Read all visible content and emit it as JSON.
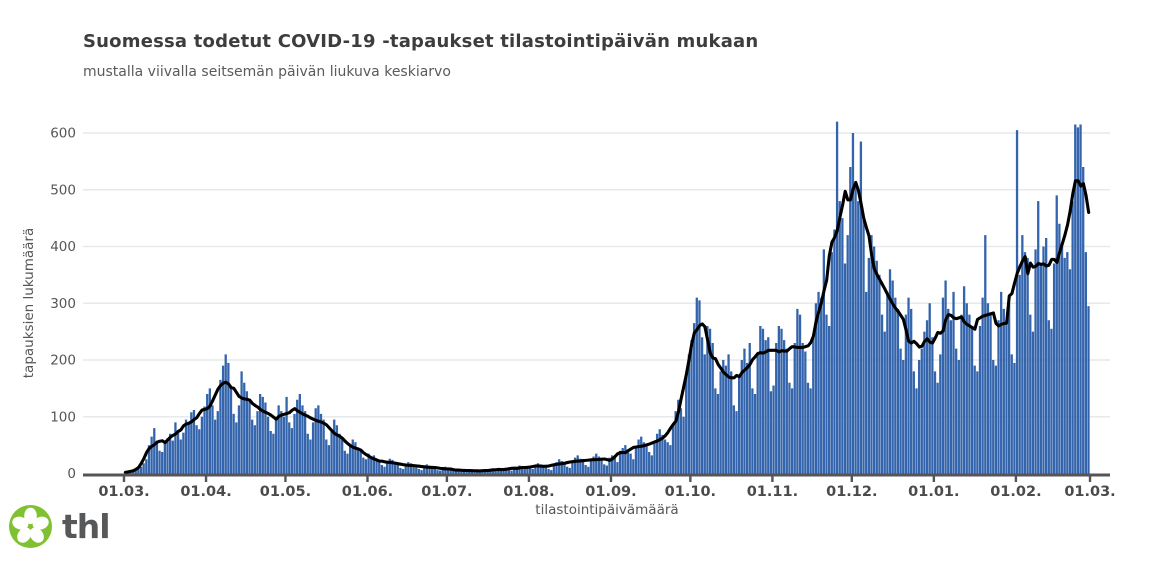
{
  "header": {
    "title": "Suomessa todetut COVID-19 -tapaukset tilastointipäivän mukaan",
    "subtitle": "mustalla viivalla seitsemän päivän liukuva keskiarvo"
  },
  "footer": {
    "logo_text": "thl",
    "logo_green": "#7fc131",
    "logo_text_color": "#57585a"
  },
  "chart_data": {
    "type": "bar",
    "title": "Suomessa todetut COVID-19 -tapaukset tilastointipäivän mukaan",
    "subtitle": "mustalla viivalla seitsemän päivän liukuva keskiarvo",
    "xlabel": "tilastointipäivämäärä",
    "ylabel": "tapauksien lukumäärä",
    "ylim": [
      0,
      600
    ],
    "y_ticks": [
      0,
      100,
      200,
      300,
      400,
      500,
      600
    ],
    "x_tick_labels": [
      "01.03.",
      "01.04.",
      "01.05.",
      "01.06.",
      "01.07.",
      "01.08.",
      "01.09.",
      "01.10.",
      "01.11.",
      "01.12.",
      "01.01.",
      "01.02.",
      "01.03."
    ],
    "x_tick_day_offsets": [
      0,
      31,
      61,
      92,
      122,
      153,
      184,
      214,
      245,
      275,
      306,
      337,
      365
    ],
    "start_date_label": "01.03.",
    "grid": "horizontal",
    "legend": "none",
    "bar_color": "#3465ac",
    "line_color": "#000000",
    "axis_color": "#555558",
    "grid_color": "#e7e9ea",
    "moving_average_window": 7,
    "series": [
      {
        "name": "tapauksien lukumäärä",
        "values": [
          1,
          2,
          1,
          4,
          6,
          8,
          12,
          18,
          25,
          50,
          65,
          80,
          58,
          40,
          38,
          55,
          62,
          70,
          58,
          90,
          75,
          60,
          72,
          95,
          88,
          108,
          112,
          85,
          78,
          100,
          118,
          140,
          150,
          120,
          95,
          110,
          165,
          190,
          210,
          195,
          150,
          105,
          90,
          120,
          180,
          160,
          145,
          130,
          95,
          85,
          110,
          140,
          135,
          125,
          100,
          75,
          70,
          95,
          120,
          110,
          100,
          135,
          90,
          80,
          105,
          130,
          140,
          120,
          110,
          70,
          60,
          90,
          115,
          120,
          105,
          95,
          60,
          50,
          75,
          95,
          85,
          70,
          60,
          40,
          35,
          50,
          60,
          55,
          45,
          40,
          28,
          25,
          35,
          28,
          32,
          25,
          20,
          15,
          12,
          22,
          26,
          24,
          20,
          18,
          10,
          8,
          15,
          20,
          18,
          16,
          14,
          8,
          6,
          12,
          16,
          14,
          12,
          10,
          6,
          5,
          10,
          12,
          8,
          10,
          6,
          5,
          4,
          3,
          6,
          8,
          7,
          5,
          4,
          3,
          2,
          5,
          7,
          6,
          8,
          5,
          4,
          6,
          9,
          8,
          10,
          7,
          5,
          8,
          12,
          14,
          10,
          8,
          12,
          10,
          8,
          14,
          18,
          16,
          15,
          12,
          8,
          6,
          15,
          20,
          25,
          22,
          18,
          12,
          10,
          20,
          28,
          32,
          26,
          22,
          15,
          12,
          25,
          30,
          35,
          30,
          24,
          16,
          14,
          28,
          32,
          28,
          20,
          40,
          45,
          50,
          42,
          35,
          25,
          45,
          60,
          65,
          55,
          48,
          38,
          32,
          55,
          70,
          78,
          68,
          60,
          55,
          50,
          85,
          110,
          130,
          115,
          100,
          170,
          210,
          235,
          265,
          310,
          305,
          240,
          210,
          260,
          255,
          230,
          150,
          140,
          180,
          200,
          190,
          210,
          180,
          120,
          110,
          170,
          200,
          220,
          195,
          230,
          150,
          140,
          210,
          260,
          255,
          235,
          240,
          145,
          155,
          230,
          260,
          255,
          235,
          220,
          160,
          150,
          230,
          290,
          280,
          230,
          215,
          160,
          150,
          240,
          300,
          320,
          310,
          395,
          280,
          260,
          390,
          430,
          620,
          480,
          450,
          370,
          420,
          540,
          600,
          515,
          480,
          585,
          450,
          320,
          380,
          420,
          400,
          375,
          350,
          280,
          250,
          320,
          360,
          340,
          310,
          290,
          220,
          200,
          280,
          310,
          290,
          180,
          150,
          200,
          220,
          250,
          270,
          300,
          240,
          180,
          160,
          210,
          310,
          340,
          290,
          270,
          320,
          220,
          200,
          280,
          330,
          300,
          280,
          260,
          190,
          180,
          260,
          310,
          420,
          300,
          280,
          200,
          190,
          270,
          320,
          290,
          270,
          300,
          210,
          195,
          605,
          350,
          420,
          390,
          380,
          280,
          250,
          395,
          480,
          370,
          400,
          415,
          270,
          255,
          370,
          490,
          440,
          400,
          380,
          390,
          360,
          480,
          615,
          610,
          615,
          540,
          390,
          295
        ]
      },
      {
        "name": "seitsemän päivän liukuva keskiarvo",
        "derived": "7-day moving average of series 0"
      }
    ]
  }
}
